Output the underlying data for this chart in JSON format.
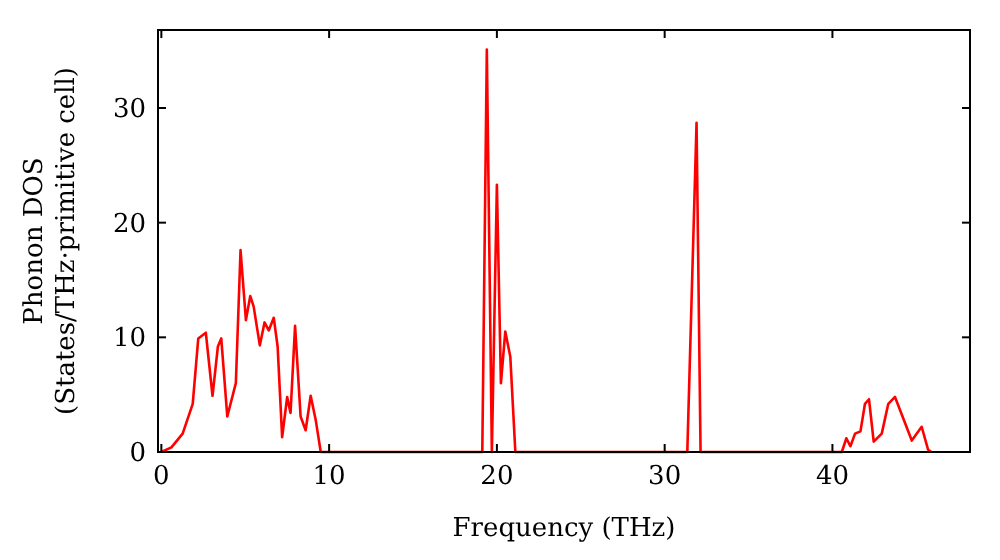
{
  "chart_data": {
    "type": "line",
    "xlabel": "Frequency (THz)",
    "ylabel": "Phonon DOS\n(States/THz·primitive cell)",
    "xlim": [
      -0.2,
      48.2
    ],
    "ylim": [
      0,
      36.8
    ],
    "xticks": [
      0,
      10,
      20,
      30,
      40
    ],
    "yticks": [
      0,
      10,
      20,
      30
    ],
    "grid": false,
    "marker": "none",
    "line_style": "solid",
    "series": [
      {
        "color": "#ff0000",
        "x": [
          0,
          0.6,
          1.27,
          1.87,
          2.2,
          2.65,
          3.05,
          3.37,
          3.57,
          3.93,
          4.44,
          4.72,
          5.04,
          5.3,
          5.5,
          5.87,
          6.15,
          6.4,
          6.7,
          6.93,
          7.2,
          7.5,
          7.7,
          7.97,
          8.3,
          8.6,
          8.9,
          9.2,
          9.5,
          19.13,
          19.4,
          19.7,
          20.0,
          20.24,
          20.5,
          20.8,
          21.1,
          31.35,
          31.9,
          32.14,
          40.56,
          40.83,
          41.07,
          41.35,
          41.67,
          41.94,
          42.18,
          42.46,
          42.94,
          43.33,
          43.73,
          44.73,
          45.32,
          45.7,
          45.9
        ],
        "values": [
          0,
          0.4,
          1.6,
          4.2,
          9.9,
          10.4,
          4.9,
          9.2,
          9.9,
          3.1,
          6.0,
          17.6,
          11.5,
          13.6,
          12.7,
          9.3,
          11.3,
          10.6,
          11.7,
          9.2,
          1.3,
          4.8,
          3.4,
          11.0,
          3.1,
          1.9,
          4.9,
          2.8,
          0,
          0,
          35.1,
          0,
          23.3,
          6.0,
          10.5,
          8.3,
          0,
          0,
          28.7,
          0,
          0,
          1.2,
          0.5,
          1.6,
          1.8,
          4.2,
          4.6,
          0.9,
          1.6,
          4.2,
          4.8,
          1.0,
          2.2,
          0.2,
          0
        ]
      }
    ]
  }
}
